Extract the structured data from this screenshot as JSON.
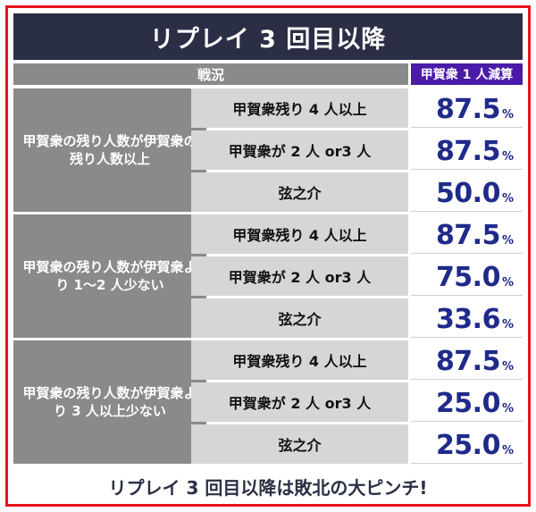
{
  "title": "リプレイ 3 回目以降",
  "header": {
    "situation": "戦況",
    "reduction": "甲賀衆 1 人減算"
  },
  "groups": [
    {
      "label": "甲賀衆の残り人数が伊賀衆の残り人数以上",
      "rows": [
        {
          "condition": "甲賀衆残り 4 人以上",
          "value": "87.5",
          "unit": "%"
        },
        {
          "condition": "甲賀衆が 2 人 or3 人",
          "value": "87.5",
          "unit": "%"
        },
        {
          "condition": "弦之介",
          "value": "50.0",
          "unit": "%"
        }
      ]
    },
    {
      "label": "甲賀衆の残り人数が伊賀衆より 1〜2 人少ない",
      "rows": [
        {
          "condition": "甲賀衆残り 4 人以上",
          "value": "87.5",
          "unit": "%"
        },
        {
          "condition": "甲賀衆が 2 人 or3 人",
          "value": "75.0",
          "unit": "%"
        },
        {
          "condition": "弦之介",
          "value": "33.6",
          "unit": "%"
        }
      ]
    },
    {
      "label": "甲賀衆の残り人数が伊賀衆より 3 人以上少ない",
      "rows": [
        {
          "condition": "甲賀衆残り 4 人以上",
          "value": "87.5",
          "unit": "%"
        },
        {
          "condition": "甲賀衆が 2 人 or3 人",
          "value": "25.0",
          "unit": "%"
        },
        {
          "condition": "弦之介",
          "value": "25.0",
          "unit": "%"
        }
      ]
    }
  ],
  "footer": "リプレイ 3 回目以降は敗北の大ピンチ!",
  "colors": {
    "title_bg": "#2b2f45",
    "header_right_bg": "#4a1aa8",
    "value_text": "#1f2a8a",
    "frame_border": "#e8141e"
  }
}
